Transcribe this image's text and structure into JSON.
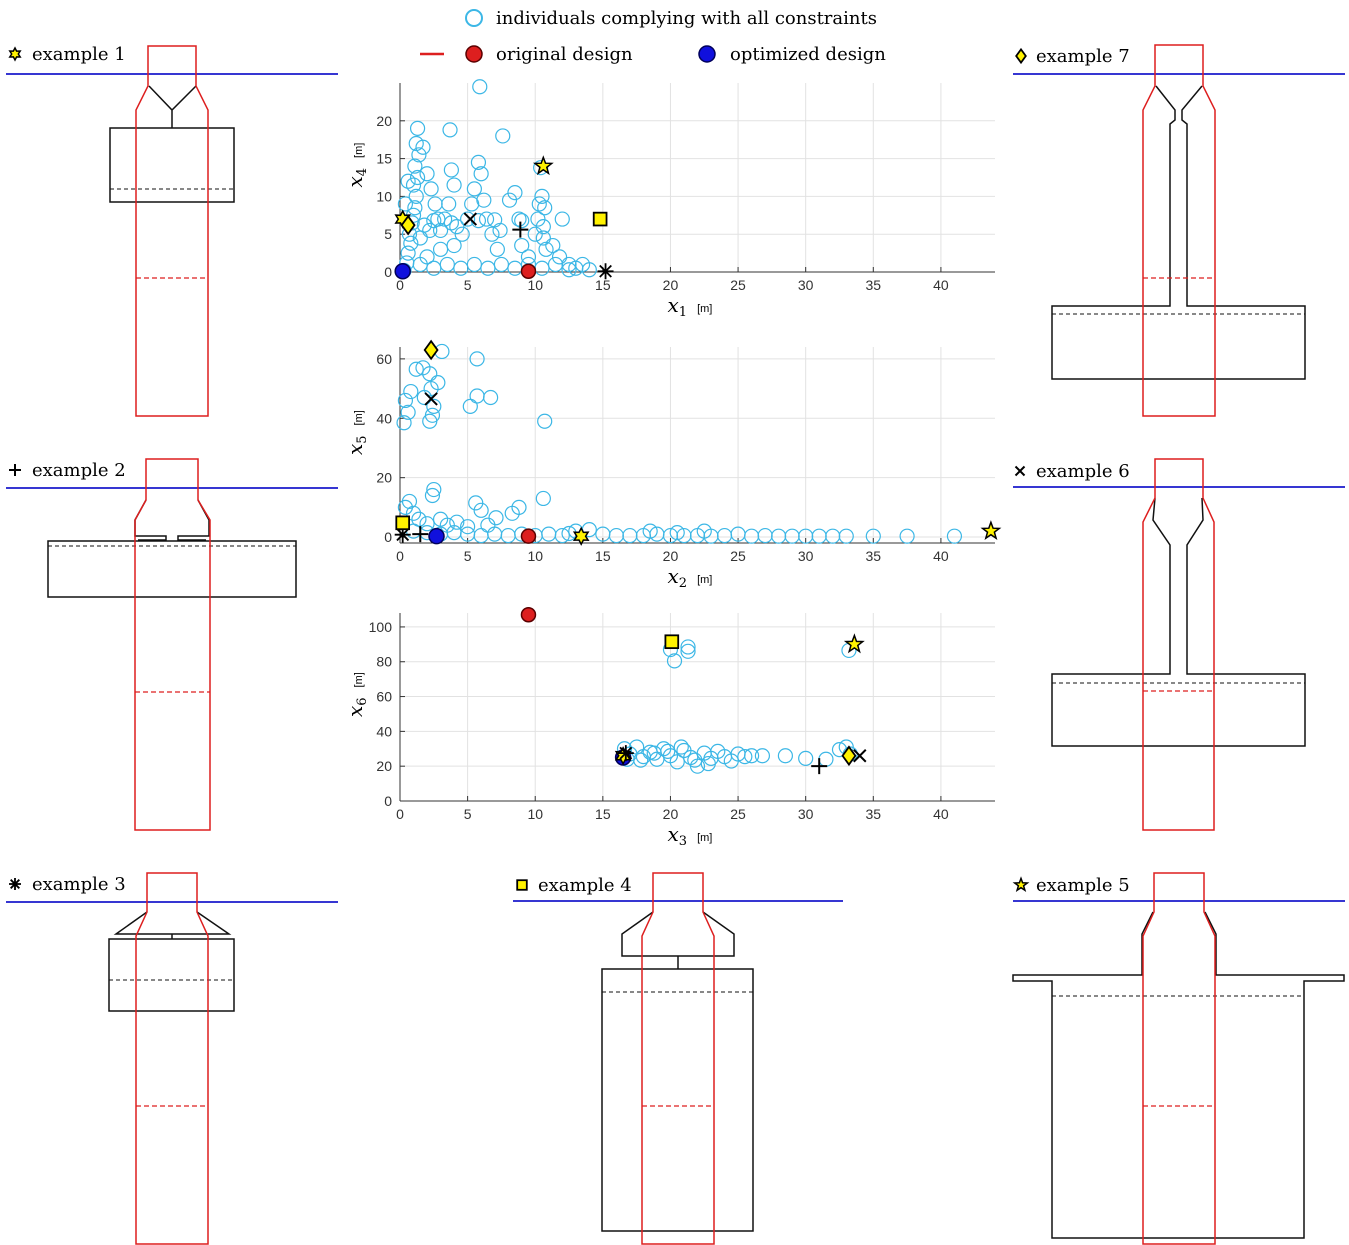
{
  "legend": {
    "individuals": "individuals complying with all constraints",
    "original": "original design",
    "optimized": "optimized design"
  },
  "colors": {
    "individuals": "#3cb7e6",
    "original": "#dd1f1f",
    "optimized": "#1010dd",
    "marker_fill": "#fff200",
    "waterline": "#1a1acc",
    "outline": "#111111"
  },
  "examples": [
    {
      "id": 1,
      "label": "example 1",
      "marker": "hexagram"
    },
    {
      "id": 2,
      "label": "example 2",
      "marker": "plus"
    },
    {
      "id": 3,
      "label": "example 3",
      "marker": "asterisk"
    },
    {
      "id": 4,
      "label": "example 4",
      "marker": "square"
    },
    {
      "id": 5,
      "label": "example 5",
      "marker": "pentagram"
    },
    {
      "id": 6,
      "label": "example 6",
      "marker": "cross"
    },
    {
      "id": 7,
      "label": "example 7",
      "marker": "diamond"
    }
  ],
  "chart_data": [
    {
      "type": "scatter",
      "xvar": "x",
      "xsub": "1",
      "xunit": "[m]",
      "yvar": "x",
      "ysub": "4",
      "yunit": "[m]",
      "xlim": [
        0,
        44
      ],
      "ylim": [
        0,
        25
      ],
      "xticks": [
        0,
        5,
        10,
        15,
        20,
        25,
        30,
        35,
        40
      ],
      "yticks": [
        0,
        5,
        10,
        15,
        20
      ],
      "grid": true,
      "individuals": [
        [
          0.3,
          0.2
        ],
        [
          0.5,
          1.2
        ],
        [
          0.6,
          2.5
        ],
        [
          0.8,
          3.8
        ],
        [
          0.7,
          5.0
        ],
        [
          0.9,
          6.5
        ],
        [
          1.0,
          7.5
        ],
        [
          1.1,
          8.5
        ],
        [
          1.2,
          10.0
        ],
        [
          1.0,
          11.5
        ],
        [
          1.3,
          12.5
        ],
        [
          1.1,
          14.0
        ],
        [
          1.4,
          15.5
        ],
        [
          1.2,
          17.0
        ],
        [
          1.3,
          19.0
        ],
        [
          1.7,
          16.5
        ],
        [
          2.0,
          13.0
        ],
        [
          2.3,
          11.0
        ],
        [
          2.6,
          9.0
        ],
        [
          2.8,
          7.0
        ],
        [
          3.0,
          5.5
        ],
        [
          3.3,
          7.0
        ],
        [
          3.6,
          9.0
        ],
        [
          4.0,
          11.5
        ],
        [
          3.8,
          13.5
        ],
        [
          3.7,
          18.8
        ],
        [
          4.2,
          6.0
        ],
        [
          4.6,
          5.0
        ],
        [
          5.0,
          7.0
        ],
        [
          5.3,
          9.0
        ],
        [
          5.5,
          11.0
        ],
        [
          5.9,
          24.5
        ],
        [
          5.8,
          14.5
        ],
        [
          6.0,
          13.0
        ],
        [
          6.2,
          9.5
        ],
        [
          6.4,
          7.0
        ],
        [
          6.8,
          5.0
        ],
        [
          7.2,
          3.0
        ],
        [
          7.4,
          5.5
        ],
        [
          7.6,
          18.0
        ],
        [
          8.1,
          9.5
        ],
        [
          8.5,
          10.5
        ],
        [
          8.8,
          7.0
        ],
        [
          9.0,
          3.5
        ],
        [
          9.5,
          2.0
        ],
        [
          10.0,
          5.0
        ],
        [
          10.2,
          7.0
        ],
        [
          10.3,
          9.0
        ],
        [
          10.5,
          10.0
        ],
        [
          10.6,
          6.0
        ],
        [
          10.8,
          3.0
        ],
        [
          10.4,
          13.8
        ],
        [
          11.3,
          3.5
        ],
        [
          11.8,
          2.0
        ],
        [
          12.0,
          7.0
        ],
        [
          12.5,
          1.0
        ],
        [
          13.0,
          0.5
        ],
        [
          13.5,
          1.0
        ],
        [
          14.0,
          0.3
        ],
        [
          1.5,
          1.0
        ],
        [
          2.5,
          0.5
        ],
        [
          3.5,
          1.0
        ],
        [
          4.5,
          0.5
        ],
        [
          5.5,
          1.0
        ],
        [
          6.5,
          0.5
        ],
        [
          7.5,
          1.0
        ],
        [
          8.5,
          0.5
        ],
        [
          9.5,
          1.0
        ],
        [
          10.5,
          0.5
        ],
        [
          11.5,
          1.0
        ],
        [
          12.5,
          0.3
        ],
        [
          2.0,
          2.0
        ],
        [
          3.0,
          3.0
        ],
        [
          4.0,
          3.5
        ],
        [
          1.5,
          4.5
        ],
        [
          2.2,
          5.5
        ],
        [
          0.4,
          9.0
        ],
        [
          0.6,
          12.0
        ],
        [
          1.8,
          6.2
        ],
        [
          2.5,
          6.8
        ],
        [
          3.8,
          6.5
        ],
        [
          5.8,
          6.8
        ],
        [
          7.0,
          6.9
        ],
        [
          9.0,
          6.8
        ],
        [
          10.6,
          4.5
        ],
        [
          10.7,
          8.5
        ]
      ],
      "original": [
        9.5,
        0.1
      ],
      "optimized": [
        0.2,
        0.1
      ],
      "examples": {
        "1": [
          0.2,
          7.0
        ],
        "2": [
          8.9,
          5.6
        ],
        "3": [
          15.2,
          0.1
        ],
        "4": [
          14.8,
          7.0
        ],
        "5": [
          10.6,
          14.0
        ],
        "6": [
          5.2,
          7.0
        ],
        "7": [
          0.6,
          6.2
        ]
      }
    },
    {
      "type": "scatter",
      "xvar": "x",
      "xsub": "2",
      "xunit": "[m]",
      "yvar": "x",
      "ysub": "5",
      "yunit": "[m]",
      "xlim": [
        0,
        44
      ],
      "ylim": [
        -2,
        64
      ],
      "xticks": [
        0,
        5,
        10,
        15,
        20,
        25,
        30,
        35,
        40
      ],
      "yticks": [
        0,
        20,
        40,
        60
      ],
      "grid": true,
      "individuals": [
        [
          0.3,
          38.5
        ],
        [
          0.6,
          42.0
        ],
        [
          0.4,
          46.0
        ],
        [
          0.8,
          49.0
        ],
        [
          1.2,
          56.5
        ],
        [
          1.7,
          57.0
        ],
        [
          2.2,
          55.0
        ],
        [
          2.3,
          50.0
        ],
        [
          1.8,
          47.0
        ],
        [
          2.5,
          44.0
        ],
        [
          2.4,
          41.0
        ],
        [
          2.2,
          39.0
        ],
        [
          2.8,
          52.0
        ],
        [
          3.1,
          62.5
        ],
        [
          5.7,
          60.0
        ],
        [
          5.2,
          44.0
        ],
        [
          5.7,
          47.5
        ],
        [
          6.7,
          47.0
        ],
        [
          10.7,
          39.0
        ],
        [
          0.4,
          10.0
        ],
        [
          0.7,
          12.0
        ],
        [
          1.0,
          8.0
        ],
        [
          1.4,
          6.0
        ],
        [
          2.0,
          4.5
        ],
        [
          2.4,
          14.0
        ],
        [
          2.5,
          16.0
        ],
        [
          3.0,
          6.0
        ],
        [
          3.5,
          4.0
        ],
        [
          4.2,
          5.0
        ],
        [
          5.0,
          3.5
        ],
        [
          5.6,
          11.5
        ],
        [
          6.0,
          9.0
        ],
        [
          6.5,
          4.0
        ],
        [
          7.1,
          6.5
        ],
        [
          8.3,
          8.0
        ],
        [
          8.8,
          10.0
        ],
        [
          10.6,
          13.0
        ],
        [
          1.0,
          2.0
        ],
        [
          2.0,
          1.5
        ],
        [
          3.0,
          1.0
        ],
        [
          4.0,
          1.5
        ],
        [
          5.0,
          1.0
        ],
        [
          6.0,
          0.5
        ],
        [
          7.0,
          1.0
        ],
        [
          8.0,
          0.5
        ],
        [
          9.0,
          1.0
        ],
        [
          10.0,
          0.5
        ],
        [
          11.0,
          1.0
        ],
        [
          12.0,
          0.5
        ],
        [
          12.5,
          1.2
        ],
        [
          13.0,
          2.0
        ],
        [
          14.0,
          2.5
        ],
        [
          15.0,
          1.0
        ],
        [
          16.0,
          0.5
        ],
        [
          17.0,
          0.5
        ],
        [
          18.0,
          0.5
        ],
        [
          19.0,
          1.0
        ],
        [
          20.0,
          0.5
        ],
        [
          21.0,
          0.5
        ],
        [
          22.0,
          0.5
        ],
        [
          23.0,
          0.3
        ],
        [
          24.0,
          0.5
        ],
        [
          25.0,
          1.0
        ],
        [
          26.0,
          0.3
        ],
        [
          27.0,
          0.5
        ],
        [
          28.0,
          0.3
        ],
        [
          29.0,
          0.3
        ],
        [
          30.0,
          0.3
        ],
        [
          31.0,
          0.3
        ],
        [
          32.0,
          0.3
        ],
        [
          33.0,
          0.3
        ],
        [
          35.0,
          0.3
        ],
        [
          37.5,
          0.3
        ],
        [
          41.0,
          0.3
        ],
        [
          18.5,
          2.0
        ],
        [
          20.5,
          1.5
        ],
        [
          22.5,
          2.0
        ]
      ],
      "original": [
        9.5,
        0.3
      ],
      "optimized": [
        2.7,
        0.3
      ],
      "examples": {
        "1": [
          13.4,
          0.3
        ],
        "2": [
          1.5,
          1.0
        ],
        "3": [
          0.2,
          0.8
        ],
        "4": [
          0.2,
          4.8
        ],
        "5": [
          43.7,
          2.0
        ],
        "6": [
          2.3,
          46.5
        ],
        "7": [
          2.3,
          63.0
        ]
      }
    },
    {
      "type": "scatter",
      "xvar": "x",
      "xsub": "3",
      "xunit": "[m]",
      "yvar": "x",
      "ysub": "6",
      "yunit": "[m]",
      "xlim": [
        0,
        44
      ],
      "ylim": [
        0,
        108
      ],
      "xticks": [
        0,
        5,
        10,
        15,
        20,
        25,
        30,
        35,
        40
      ],
      "yticks": [
        0,
        20,
        40,
        60,
        80,
        100
      ],
      "grid": true,
      "individuals": [
        [
          16.6,
          30.0
        ],
        [
          17.0,
          27.0
        ],
        [
          17.5,
          31.0
        ],
        [
          18.0,
          25.5
        ],
        [
          18.5,
          28.0
        ],
        [
          19.0,
          24.0
        ],
        [
          19.5,
          30.0
        ],
        [
          20.0,
          26.0
        ],
        [
          20.5,
          22.5
        ],
        [
          21.0,
          29.0
        ],
        [
          21.5,
          25.0
        ],
        [
          22.0,
          20.0
        ],
        [
          22.5,
          27.5
        ],
        [
          23.0,
          24.5
        ],
        [
          23.5,
          28.5
        ],
        [
          24.0,
          25.5
        ],
        [
          24.5,
          23.0
        ],
        [
          25.0,
          27.0
        ],
        [
          25.5,
          25.5
        ],
        [
          26.0,
          26.0
        ],
        [
          26.8,
          26.0
        ],
        [
          28.5,
          26.0
        ],
        [
          30.0,
          24.5
        ],
        [
          31.5,
          24.0
        ],
        [
          32.5,
          29.5
        ],
        [
          33.0,
          31.0
        ],
        [
          33.3,
          27.0
        ],
        [
          16.8,
          24.0
        ],
        [
          17.8,
          23.5
        ],
        [
          18.8,
          27.5
        ],
        [
          19.8,
          28.5
        ],
        [
          20.8,
          31.0
        ],
        [
          21.8,
          23.5
        ],
        [
          22.8,
          21.5
        ],
        [
          20.0,
          87.0
        ],
        [
          20.3,
          80.5
        ],
        [
          21.3,
          88.5
        ],
        [
          21.3,
          86.0
        ],
        [
          33.2,
          86.5
        ]
      ],
      "original": [
        9.5,
        107.0
      ],
      "optimized": [
        16.5,
        25.0
      ],
      "examples": {
        "1": [
          16.5,
          26.0
        ],
        "2": [
          31.0,
          20.0
        ],
        "3": [
          16.7,
          27.5
        ],
        "4": [
          20.1,
          91.5
        ],
        "5": [
          33.6,
          90.0
        ],
        "6": [
          34.0,
          26.0
        ],
        "7": [
          33.2,
          26.0
        ]
      }
    }
  ]
}
